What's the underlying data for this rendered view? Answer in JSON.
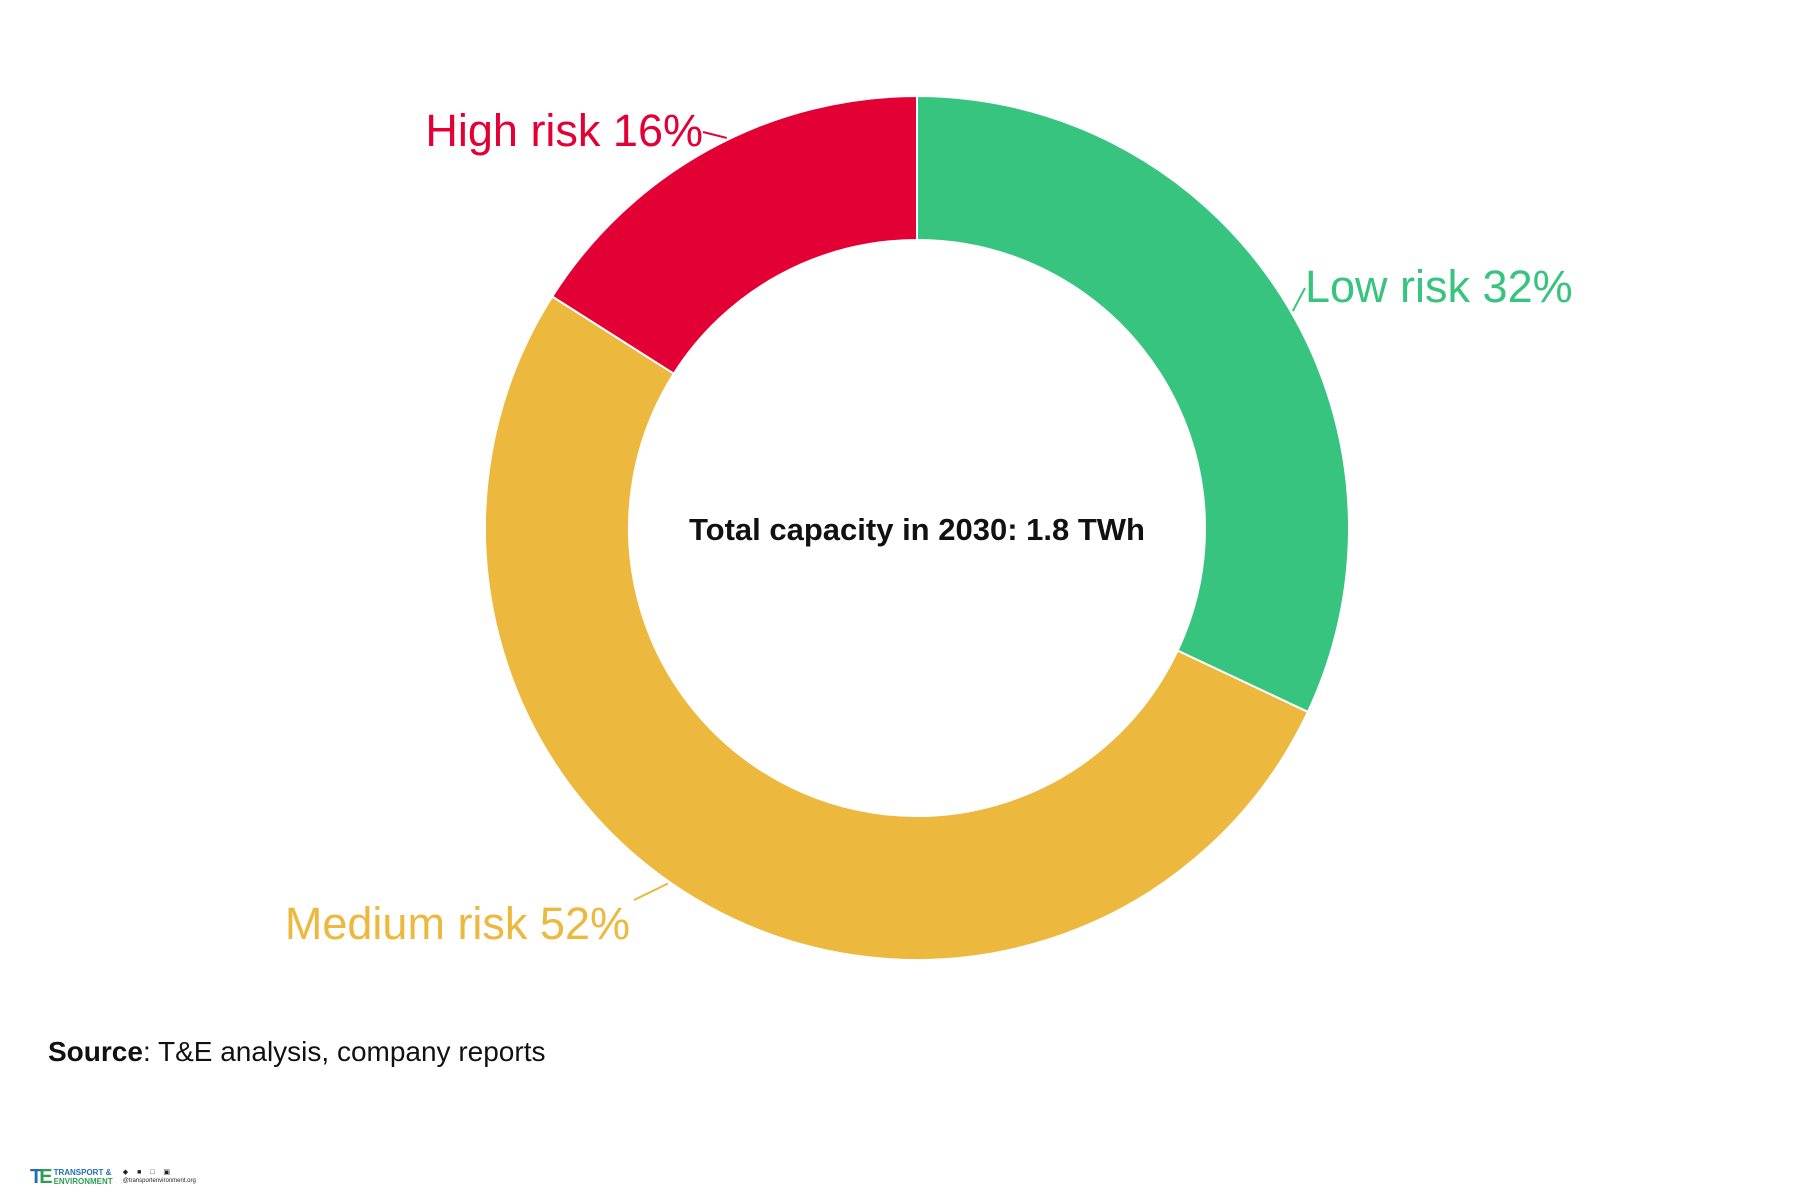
{
  "chart_data": {
    "type": "pie",
    "donut": true,
    "start_angle_deg": 0,
    "direction": "clockwise",
    "center_text": "Total capacity in 2030: 1.8 TWh",
    "slices": [
      {
        "label": "Low risk",
        "value": 32,
        "value_text": "32%",
        "color": "#37c47f",
        "label_text": "Low risk 32%"
      },
      {
        "label": "Medium risk",
        "value": 52,
        "value_text": "52%",
        "color": "#ecb83d",
        "label_text": "Medium risk 52%"
      },
      {
        "label": "High risk",
        "value": 16,
        "value_text": "16%",
        "color": "#e30034",
        "label_text": "High risk 16%"
      }
    ]
  },
  "source": {
    "label": "Source",
    "text": ": T&E analysis, company reports"
  },
  "logo": {
    "line1": "TRANSPORT &",
    "line2": "ENVIRONMENT",
    "url": "@transportenvironment.org"
  }
}
